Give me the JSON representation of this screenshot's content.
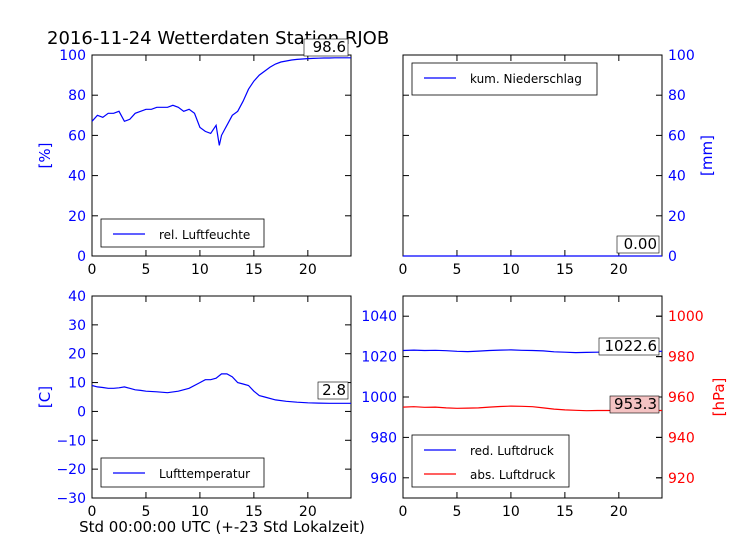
{
  "figure": {
    "title": "2016-11-24 Wetterdaten Station RJOB",
    "xlabel": "Std 00:00:00 UTC (+-23 Std Lokalzeit)"
  },
  "chart_data": [
    {
      "id": "humidity",
      "type": "line",
      "ylabel": "[%]",
      "ylabel_side": "left",
      "ylabel_color": "#0000ff",
      "xlim": [
        0,
        24
      ],
      "ylim": [
        0,
        100
      ],
      "xticks": [
        0,
        5,
        10,
        15,
        20
      ],
      "yticks": [
        0,
        20,
        40,
        60,
        80,
        100
      ],
      "tick_color": "#0000ff",
      "legend_placement": "lower-left",
      "series": [
        {
          "name": "rel. Luftfeuchte",
          "color": "#0000ff",
          "x": [
            0,
            0.5,
            1,
            1.5,
            2,
            2.5,
            3,
            3.5,
            4,
            4.5,
            5,
            5.5,
            6,
            6.5,
            7,
            7.5,
            8,
            8.5,
            9,
            9.5,
            10,
            10.5,
            11,
            11.5,
            11.8,
            12,
            12.3,
            12.6,
            13,
            13.5,
            14,
            14.5,
            15,
            15.5,
            16,
            16.5,
            17,
            17.5,
            18,
            18.5,
            19,
            19.5,
            20,
            20.5,
            21,
            21.5,
            22,
            22.5,
            23,
            23.5,
            24
          ],
          "y": [
            67,
            70,
            69,
            71,
            71,
            72,
            67,
            68,
            71,
            72,
            73,
            73,
            74,
            74,
            74,
            75,
            74,
            72,
            73,
            71,
            64,
            62,
            61,
            65,
            55,
            60,
            63,
            66,
            70,
            72,
            77,
            83,
            87,
            90,
            92,
            94,
            95.5,
            96.5,
            97,
            97.5,
            97.8,
            98,
            98.2,
            98.3,
            98.4,
            98.5,
            98.5,
            98.6,
            98.6,
            98.6,
            98.6
          ]
        }
      ],
      "annotation": "98.6"
    },
    {
      "id": "precipitation",
      "type": "line",
      "ylabel": "[mm]",
      "ylabel_side": "right",
      "ylabel_color": "#0000ff",
      "xlim": [
        0,
        24
      ],
      "ylim": [
        0,
        100
      ],
      "xticks": [
        0,
        5,
        10,
        15,
        20
      ],
      "yticks": [
        0,
        20,
        40,
        60,
        80,
        100
      ],
      "tick_color": "#0000ff",
      "legend_placement": "upper-left",
      "series": [
        {
          "name": "kum. Niederschlag",
          "color": "#0000ff",
          "x": [
            0,
            24
          ],
          "y": [
            0,
            0
          ]
        }
      ],
      "annotation": "0.00"
    },
    {
      "id": "temperature",
      "type": "line",
      "ylabel": "[C]",
      "ylabel_side": "left",
      "ylabel_color": "#0000ff",
      "xlim": [
        0,
        24
      ],
      "ylim": [
        -30,
        40
      ],
      "xticks": [
        0,
        5,
        10,
        15,
        20
      ],
      "yticks": [
        -30,
        -20,
        -10,
        0,
        10,
        20,
        30,
        40
      ],
      "tick_color": "#0000ff",
      "legend_placement": "lower-left",
      "series": [
        {
          "name": "Lufttemperatur",
          "color": "#0000ff",
          "x": [
            0,
            0.5,
            1,
            1.5,
            2,
            2.5,
            3,
            3.5,
            4,
            4.5,
            5,
            6,
            7,
            8,
            9,
            10,
            10.5,
            11,
            11.5,
            12,
            12.5,
            13,
            13.5,
            14,
            14.5,
            15,
            15.5,
            16,
            17,
            18,
            19,
            20,
            21,
            22,
            23,
            24
          ],
          "y": [
            9,
            8.5,
            8.3,
            8,
            8,
            8.2,
            8.5,
            8,
            7.5,
            7.3,
            7,
            6.8,
            6.5,
            7,
            8,
            10,
            11,
            11,
            11.5,
            13,
            13,
            12,
            10,
            9.5,
            9,
            7,
            5.5,
            5,
            4,
            3.5,
            3.2,
            3,
            2.9,
            2.8,
            2.8,
            2.8
          ]
        }
      ],
      "annotation": "2.8"
    },
    {
      "id": "pressure",
      "type": "line",
      "ylabel": "[hPa]",
      "ylabel_side": "right",
      "ylabel_color": "#ff0000",
      "xlim": [
        0,
        24
      ],
      "ylim": [
        950,
        1050
      ],
      "xticks": [
        0,
        5,
        10,
        15,
        20
      ],
      "yticks": [
        960,
        980,
        1000,
        1020,
        1040
      ],
      "tick_color": "#0000ff",
      "y2lim": [
        910,
        1010
      ],
      "y2ticks": [
        920,
        940,
        960,
        980,
        1000
      ],
      "y2tick_color": "#ff0000",
      "legend_placement": "lower-left",
      "series": [
        {
          "name": "red. Luftdruck",
          "color": "#0000ff",
          "axis": "left",
          "x": [
            0,
            1,
            2,
            3,
            4,
            5,
            6,
            7,
            8,
            9,
            10,
            11,
            12,
            13,
            14,
            15,
            16,
            17,
            18,
            19,
            20,
            21,
            22,
            23,
            24
          ],
          "y": [
            1023,
            1023.2,
            1023,
            1023.1,
            1022.9,
            1022.6,
            1022.5,
            1022.7,
            1023,
            1023.2,
            1023.3,
            1023.1,
            1023,
            1022.8,
            1022.4,
            1022.2,
            1022,
            1022.1,
            1022.2,
            1022.4,
            1022.5,
            1022.6,
            1022.6,
            1022.6,
            1022.6
          ]
        },
        {
          "name": "abs. Luftdruck",
          "color": "#ff0000",
          "axis": "right",
          "x": [
            0,
            1,
            2,
            3,
            4,
            5,
            6,
            7,
            8,
            9,
            10,
            11,
            12,
            13,
            14,
            15,
            16,
            17,
            18,
            19,
            20,
            21,
            22,
            23,
            24
          ],
          "y": [
            955,
            955.2,
            954.9,
            955,
            954.6,
            954.4,
            954.5,
            954.6,
            955,
            955.3,
            955.5,
            955.4,
            955.2,
            954.6,
            954,
            953.6,
            953.4,
            953.2,
            953.3,
            953.3,
            953.3,
            953.3,
            953.3,
            953.3,
            953.3
          ]
        }
      ],
      "annotations": [
        "1022.6",
        "953.3"
      ]
    }
  ]
}
